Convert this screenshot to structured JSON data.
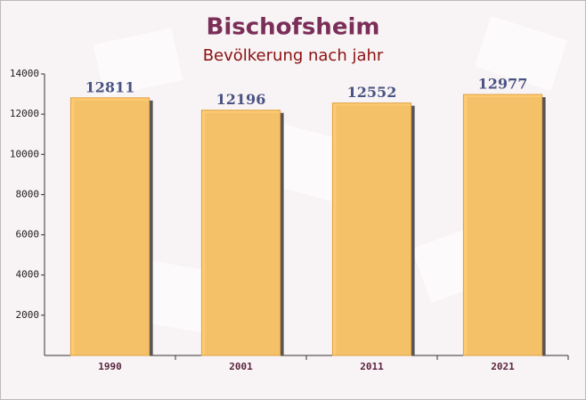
{
  "chart_data": {
    "type": "bar",
    "title": "Bischofsheim",
    "subtitle": "Bevölkerung nach jahr",
    "categories": [
      "1990",
      "2001",
      "2011",
      "2021"
    ],
    "values": [
      12811,
      12196,
      12552,
      12977
    ],
    "color": "#fdc76a",
    "ylim": [
      0,
      14000
    ],
    "yticks": [
      2000,
      4000,
      6000,
      8000,
      10000,
      12000,
      14000
    ]
  }
}
